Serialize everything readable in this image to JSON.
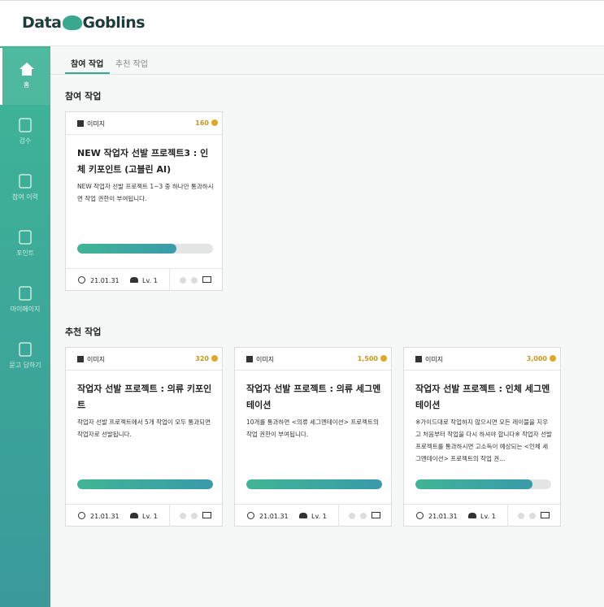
{
  "header": {
    "logo_left": "Data",
    "logo_right": "Goblins"
  },
  "sidebar": {
    "items": [
      "홈",
      "검수",
      "참여 이력",
      "포인트",
      "마이페이지",
      "묻고 답하기"
    ]
  },
  "tabs": [
    "참여 작업",
    "추천 작업"
  ],
  "sections": [
    {
      "title": "참여 작업",
      "cards": [
        {
          "category": "이미지",
          "points": "160",
          "title": "NEW 작업자 선발 프로젝트3 : 인체 키포인트 (고블린 AI)",
          "description": "NEW 작업자 선발 프로젝트 1~3 중 하나만 통과하시면 작업 권한이 부여됩니다.",
          "progress": 73,
          "date": "21.01.31",
          "level": "Lv. 1"
        }
      ]
    },
    {
      "title": "추천 작업",
      "cards": [
        {
          "category": "이미지",
          "points": "320",
          "title": "작업자 선발 프로젝트 : 의류 키포인트",
          "description": "작업자 선발 프로젝트에서 5개 작업이 모두 통과되면 작업자로 선발됩니다.",
          "progress": 100,
          "date": "21.01.31",
          "level": "Lv. 1"
        },
        {
          "category": "이미지",
          "points": "1,500",
          "title": "작업자 선발 프로젝트 : 의류 세그멘테이션",
          "description": "10개를 통과하면 <의류 세그멘테이션> 프로젝트의 작업 권한이 부여됩니다.",
          "progress": 100,
          "date": "21.01.31",
          "level": "Lv. 1"
        },
        {
          "category": "이미지",
          "points": "3,000",
          "title": "작업자 선발 프로젝트 : 인체 세그멘테이션",
          "description": "※가이드대로 작업하지 않으시면 모든 레이블을 지우고 처음부터 작업을 다시 하셔야 합니다※ 작업자 선발 프로젝트를 통과하시면 고소득이 예상되는 <인체 세그멘테이션> 프로젝트의 작업 권...",
          "progress": 86,
          "date": "21.01.31",
          "level": "Lv. 1"
        }
      ]
    }
  ]
}
